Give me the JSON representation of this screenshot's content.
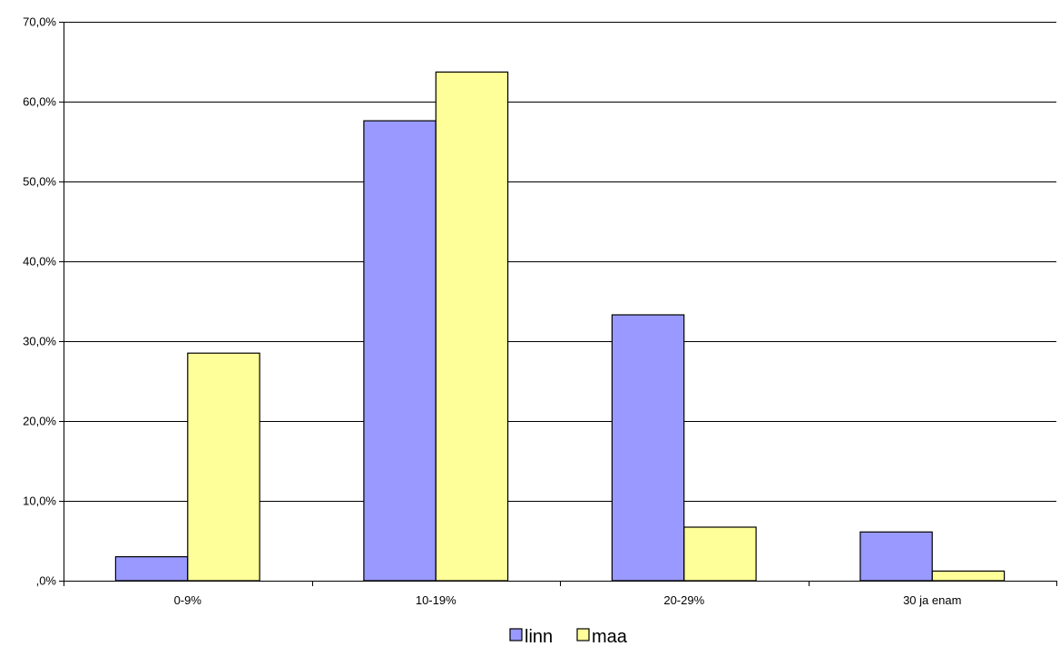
{
  "chart_data": {
    "type": "bar",
    "title": "",
    "xlabel": "",
    "ylabel": "",
    "categories": [
      "0-9%",
      "10-19%",
      "20-29%",
      "30 ja enam"
    ],
    "series": [
      {
        "name": "linn",
        "values": [
          3.0,
          57.6,
          33.3,
          6.1
        ],
        "color": "#9999ff"
      },
      {
        "name": "maa",
        "values": [
          28.5,
          63.7,
          6.7,
          1.2
        ],
        "color": "#ffff99"
      }
    ],
    "ylim": [
      0,
      70
    ],
    "yticks": [
      0,
      10,
      20,
      30,
      40,
      50,
      60,
      70
    ],
    "ytick_labels": [
      ",0%",
      "10,0%",
      "20,0%",
      "30,0%",
      "40,0%",
      "50,0%",
      "60,0%",
      "70,0%"
    ],
    "grid": true,
    "legend_position": "bottom"
  }
}
